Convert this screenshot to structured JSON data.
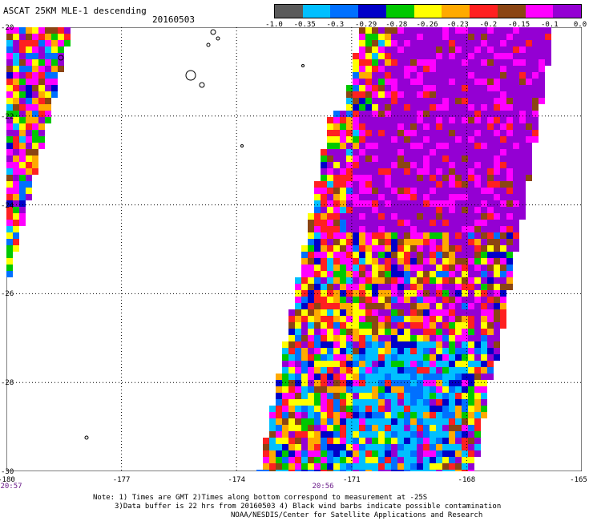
{
  "header": {
    "title": "ASCAT 25KM MLE-1 descending",
    "date": "20160503"
  },
  "colorbar": {
    "colors": [
      "#5a5a5a",
      "#00bfff",
      "#0070ff",
      "#0000c8",
      "#00c800",
      "#ffff00",
      "#ffaa00",
      "#ff2020",
      "#8b4513",
      "#ff00ff",
      "#9400d3"
    ],
    "labels": [
      "-1.0",
      "-0.35",
      "-0.3",
      "-0.29",
      "-0.28",
      "-0.26",
      "-0.23",
      "-0.2",
      "-0.15",
      "-0.1",
      "0.0"
    ]
  },
  "map": {
    "lon_ticks": [
      "-180",
      "-177",
      "-174",
      "-171",
      "-168",
      "-165"
    ],
    "lat_ticks": [
      "-20",
      "-22",
      "-24",
      "-26",
      "-28",
      "-30"
    ],
    "pass_times": [
      "20:57",
      "20:56"
    ]
  },
  "notes": {
    "line1": "Note: 1) Times are GMT 2)Times along bottom correspond to measurement at -25S",
    "line2": "3)Data buffer is 22 hrs from 20160503 4) Black wind barbs indicate possible contamination",
    "line3": "NOAA/NESDIS/Center for Satellite Applications and Research"
  }
}
